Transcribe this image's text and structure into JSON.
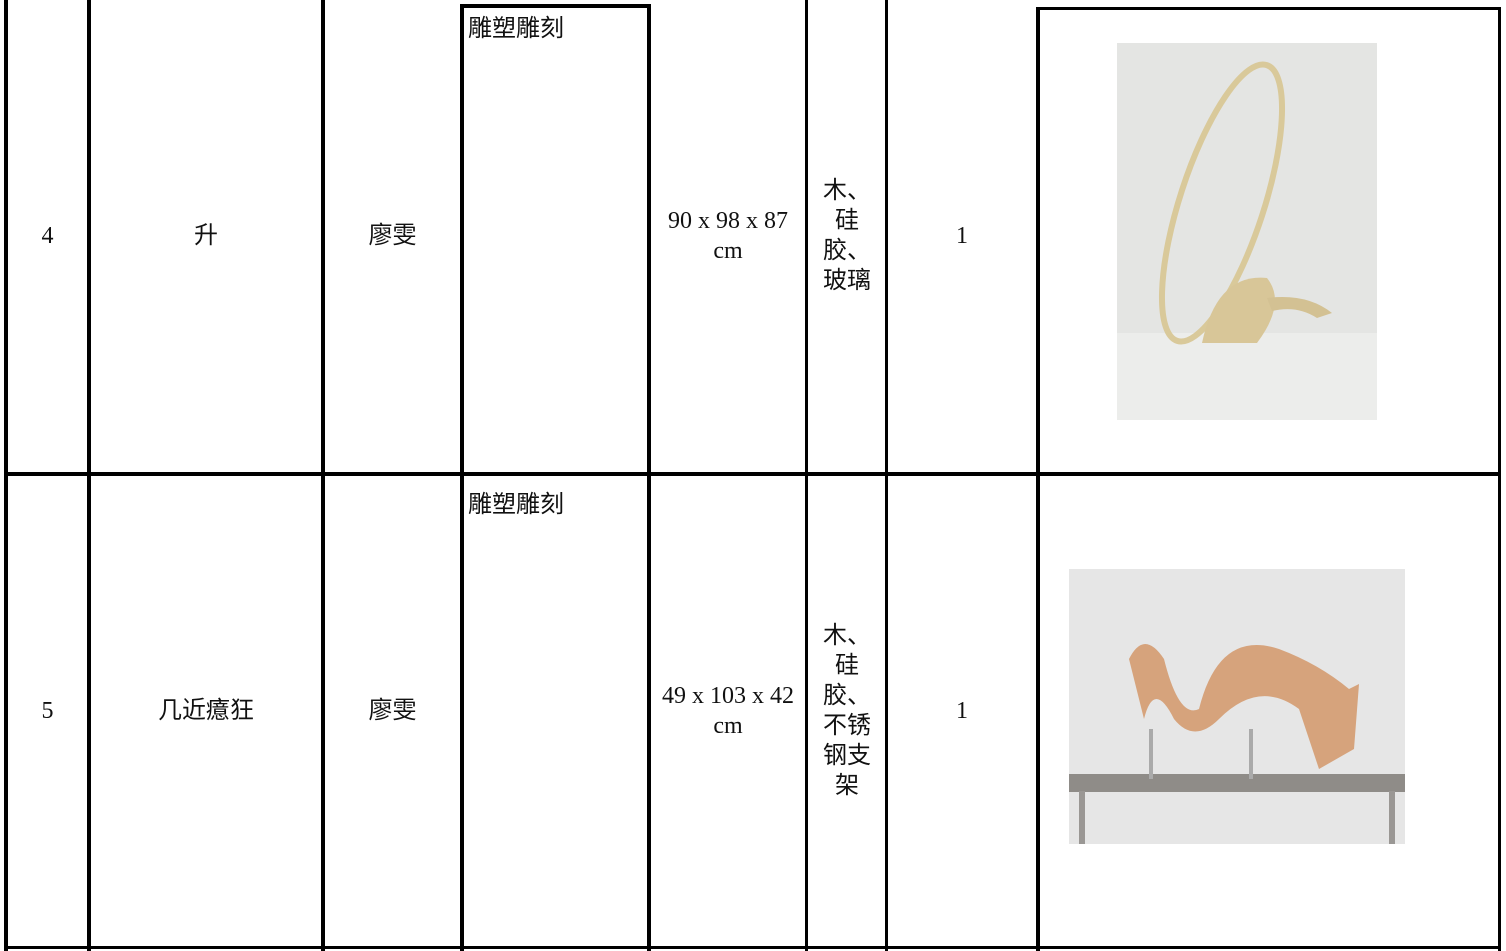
{
  "table": {
    "rows": [
      [
        "4",
        "升",
        "廖雯",
        "雕塑雕刻",
        "90 x 98 x 87 cm",
        "木、硅胶、玻璃",
        "1"
      ],
      [
        "5",
        "几近癔狂",
        "廖雯",
        "雕塑雕刻",
        "49 x 103 x 42 cm",
        "木、硅胶、不锈钢支架",
        "1"
      ]
    ]
  }
}
